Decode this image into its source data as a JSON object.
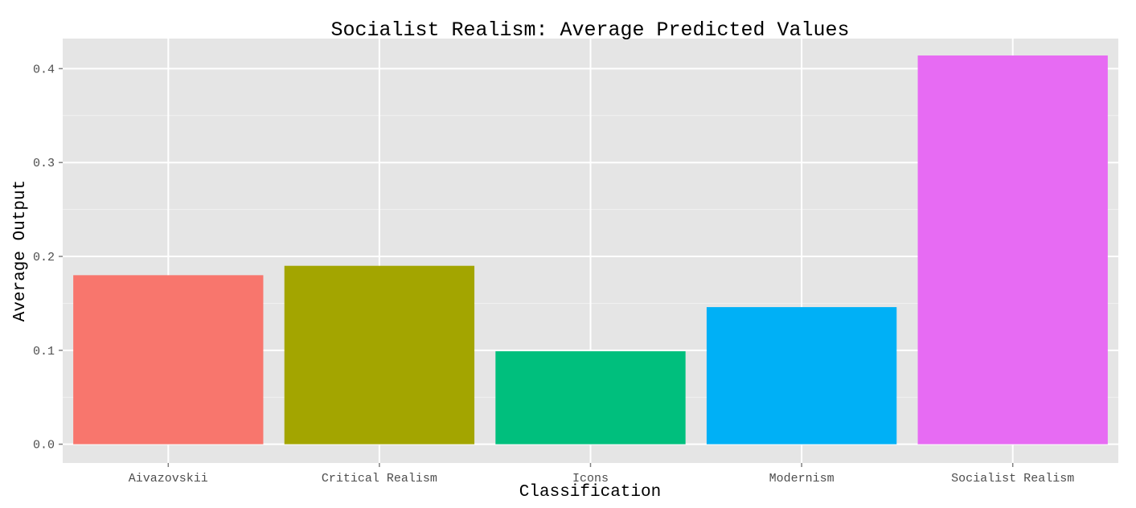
{
  "chart_data": {
    "type": "bar",
    "title": "Socialist Realism: Average Predicted Values",
    "xlabel": "Classification",
    "ylabel": "Average Output",
    "categories": [
      "Aivazovskii",
      "Critical Realism",
      "Icons",
      "Modernism",
      "Socialist Realism"
    ],
    "values": [
      0.18,
      0.19,
      0.099,
      0.146,
      0.414
    ],
    "colors": [
      "#F8766D",
      "#A3A500",
      "#00BF7D",
      "#00B0F6",
      "#E76BF3"
    ],
    "ylim": [
      -0.02,
      0.432
    ],
    "y_ticks": [
      0.0,
      0.1,
      0.2,
      0.3,
      0.4
    ],
    "y_tick_labels": [
      "0.0",
      "0.1",
      "0.2",
      "0.3",
      "0.4"
    ],
    "grid": true,
    "legend": "none",
    "panel_background": "#E5E5E5"
  }
}
